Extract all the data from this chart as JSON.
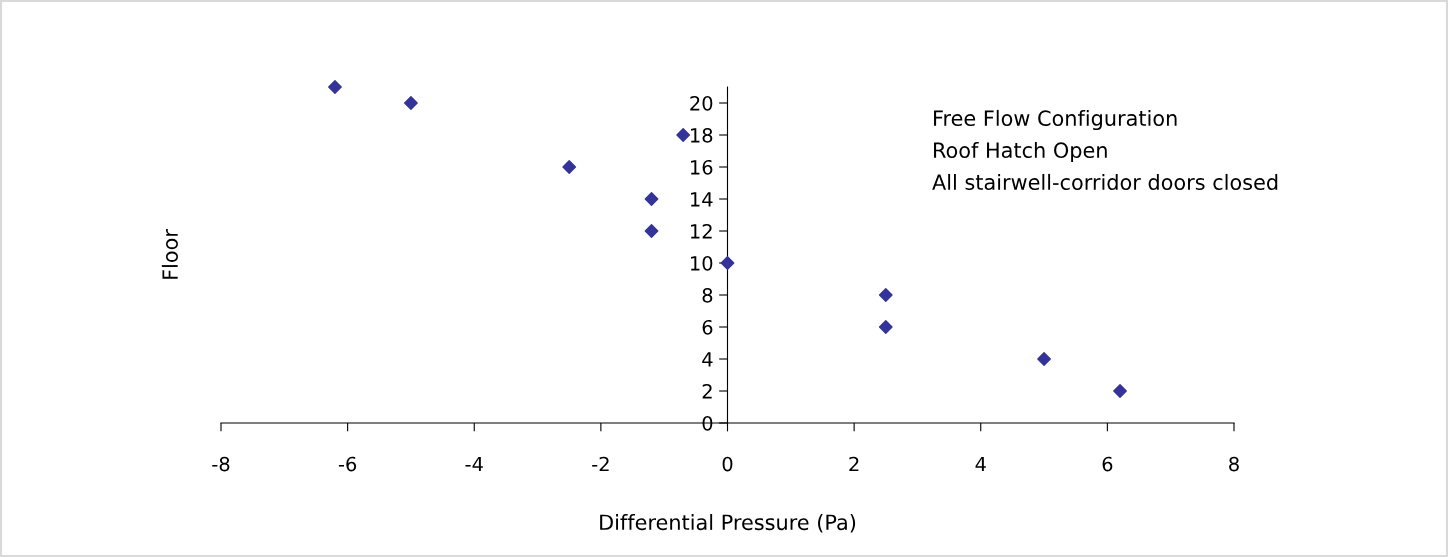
{
  "chart_data": {
    "type": "scatter",
    "xlabel": "Differential Pressure (Pa)",
    "ylabel": "Floor",
    "x": [
      -6.2,
      -5.0,
      -0.7,
      -2.5,
      -1.2,
      -1.2,
      0,
      2.5,
      2.5,
      5.0,
      6.2
    ],
    "series": [
      {
        "color": "#333399",
        "values": [
          21,
          20,
          18,
          16,
          14,
          12,
          10,
          8,
          6,
          4,
          2
        ]
      }
    ],
    "marker": "diamond",
    "xlim": [
      -8,
      8
    ],
    "xticks": [
      -8,
      -6,
      -4,
      -2,
      0,
      2,
      4,
      6,
      8
    ],
    "ylim": [
      0,
      21
    ],
    "yticks": [
      0,
      2,
      4,
      6,
      8,
      10,
      12,
      14,
      16,
      18,
      20
    ],
    "grid": false,
    "annotations": [
      "Free Flow Configuration",
      "Roof Hatch Open",
      "All stairwell-corridor doors closed"
    ]
  }
}
